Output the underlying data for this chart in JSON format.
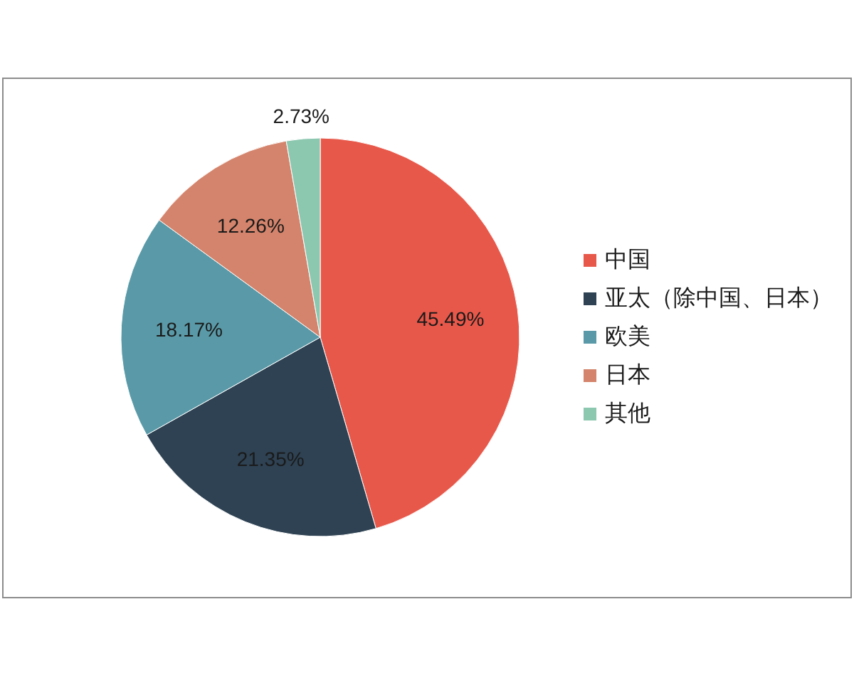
{
  "chart_data": {
    "type": "pie",
    "categories": [
      "中国",
      "亚太（除中国、日本）",
      "欧美",
      "日本",
      "其他"
    ],
    "values": [
      45.49,
      21.35,
      18.17,
      12.26,
      2.73
    ],
    "colors": [
      "#e8584a",
      "#2e4253",
      "#5a9aa8",
      "#d4846c",
      "#8cc7b0"
    ],
    "value_labels": [
      "45.49%",
      "21.35%",
      "18.17%",
      "12.26%",
      "2.73%"
    ],
    "legend": "right"
  }
}
